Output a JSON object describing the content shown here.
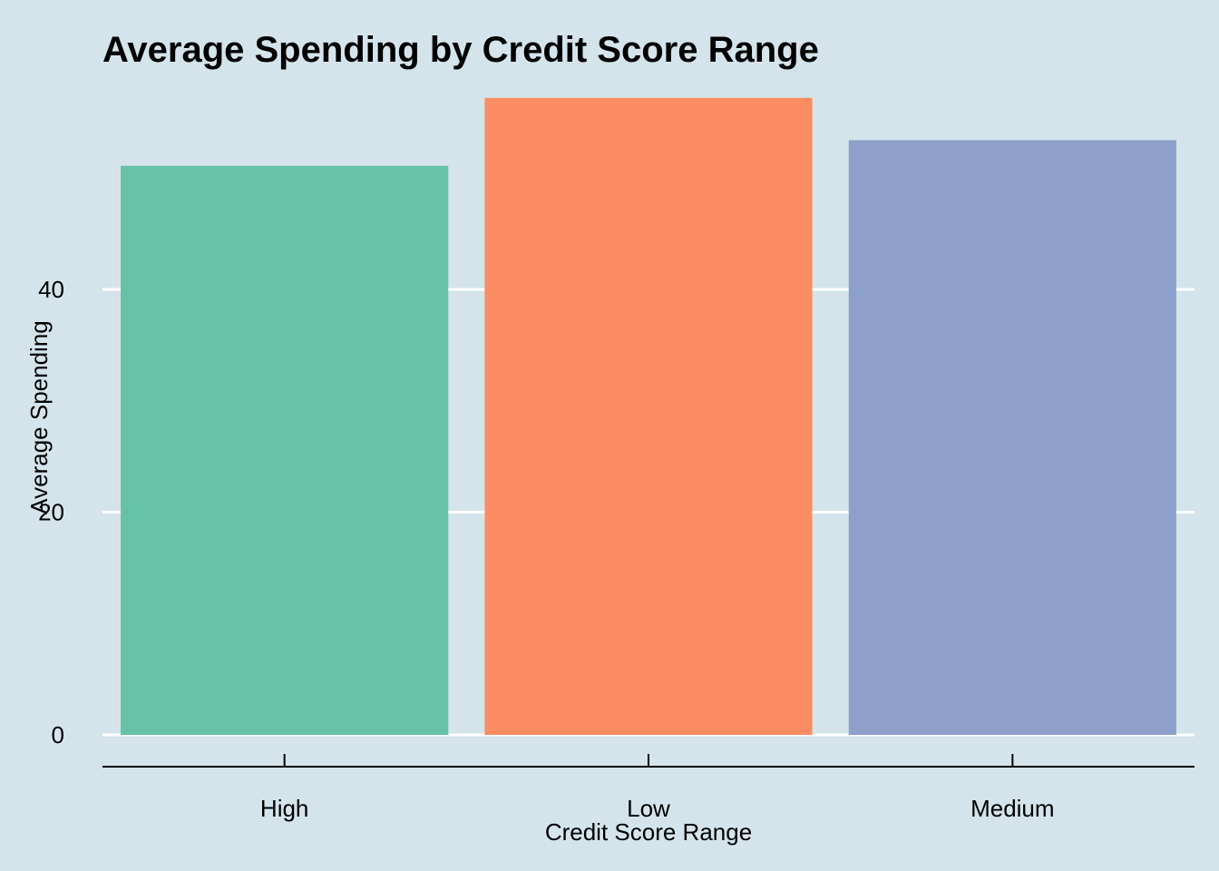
{
  "chart_data": {
    "type": "bar",
    "title": "Average Spending by Credit Score Range",
    "xlabel": "Credit Score Range",
    "ylabel": "Average Spending",
    "categories": [
      "High",
      "Low",
      "Medium"
    ],
    "values": [
      51.1,
      57.2,
      53.4
    ],
    "colors": [
      "#66c2a5",
      "#fc8d62",
      "#8da0cb"
    ],
    "yticks": [
      0,
      20,
      40
    ],
    "ylim": [
      0,
      57.2
    ],
    "grid": true,
    "legend": "none",
    "background": "#d5e4eb"
  }
}
